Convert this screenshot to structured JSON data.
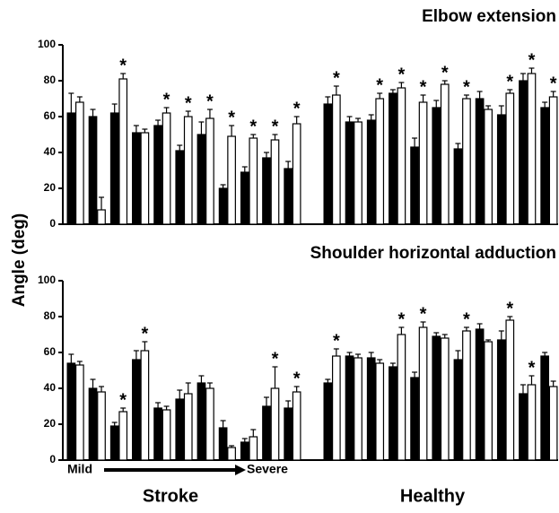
{
  "y_label": "Angle (deg)",
  "annotation": "*",
  "groups": [
    {
      "label": "Stroke",
      "scale_start": "Mild",
      "scale_end": "Severe"
    },
    {
      "label": "Healthy"
    }
  ],
  "chart_data": [
    {
      "type": "bar",
      "title": "Elbow extension",
      "categories": [
        null,
        null,
        null,
        null,
        null,
        null,
        null,
        null,
        null,
        null,
        null,
        null,
        null,
        null,
        null,
        null,
        null,
        null,
        null,
        null,
        null,
        null
      ],
      "ylim": [
        0,
        100
      ],
      "yticks": [
        0,
        20,
        40,
        60,
        80,
        100
      ],
      "series": [
        {
          "color": "#000000",
          "values": [
            62,
            60,
            62,
            51,
            55,
            41,
            50,
            20,
            29,
            37,
            31,
            67,
            57,
            58,
            73,
            43,
            65,
            42,
            70,
            61,
            80,
            65
          ],
          "errors": [
            11,
            4,
            5,
            4,
            3,
            3,
            7,
            2,
            3,
            3,
            4,
            4,
            3,
            3,
            2,
            5,
            4,
            3,
            4,
            5,
            4,
            3
          ]
        },
        {
          "color": "#ffffff",
          "values": [
            68,
            8,
            81,
            51,
            62,
            60,
            59,
            49,
            48,
            47,
            56,
            72,
            57,
            70,
            76,
            68,
            78,
            70,
            64,
            73,
            84,
            71
          ],
          "errors": [
            3,
            7,
            3,
            2,
            3,
            3,
            5,
            6,
            2,
            3,
            4,
            5,
            2,
            3,
            3,
            4,
            2,
            2,
            2,
            2,
            3,
            3
          ],
          "starred": [
            false,
            false,
            true,
            false,
            true,
            true,
            true,
            true,
            true,
            true,
            true,
            true,
            false,
            true,
            true,
            true,
            true,
            true,
            false,
            true,
            true,
            true
          ]
        }
      ]
    },
    {
      "type": "bar",
      "title": "Shoulder horizontal adduction",
      "categories": [
        null,
        null,
        null,
        null,
        null,
        null,
        null,
        null,
        null,
        null,
        null,
        null,
        null,
        null,
        null,
        null,
        null,
        null,
        null,
        null,
        null,
        null
      ],
      "ylim": [
        0,
        100
      ],
      "yticks": [
        0,
        20,
        40,
        60,
        80,
        100
      ],
      "series": [
        {
          "color": "#000000",
          "values": [
            54,
            40,
            19,
            56,
            29,
            34,
            43,
            18,
            10,
            30,
            29,
            43,
            58,
            57,
            52,
            46,
            69,
            56,
            73,
            67,
            37,
            58
          ],
          "errors": [
            5,
            5,
            2,
            5,
            3,
            5,
            4,
            4,
            2,
            5,
            4,
            2,
            2,
            3,
            2,
            3,
            2,
            5,
            3,
            5,
            5,
            2
          ]
        },
        {
          "color": "#ffffff",
          "values": [
            53,
            38,
            27,
            61,
            28,
            37,
            40,
            7,
            13,
            40,
            38,
            58,
            57,
            54,
            70,
            74,
            68,
            72,
            66,
            78,
            42,
            41
          ],
          "errors": [
            2,
            3,
            2,
            5,
            2,
            6,
            3,
            1,
            4,
            12,
            3,
            4,
            2,
            2,
            4,
            3,
            2,
            2,
            1,
            2,
            5,
            3
          ],
          "starred": [
            false,
            false,
            true,
            true,
            false,
            false,
            false,
            false,
            false,
            true,
            true,
            true,
            false,
            false,
            true,
            true,
            false,
            true,
            false,
            true,
            true,
            false
          ]
        }
      ]
    }
  ]
}
